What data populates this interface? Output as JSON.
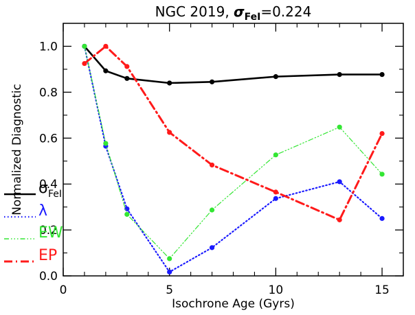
{
  "chart_data": {
    "type": "line",
    "title_prefix": "NGC 2019, ",
    "title_sigma": "σ",
    "title_sub": "FeI",
    "title_suffix": "=0.224",
    "xlabel": "Isochrone Age (Gyrs)",
    "ylabel": "Normalized Diagnostic",
    "xlim": [
      0,
      16
    ],
    "ylim": [
      0,
      1.1
    ],
    "xticks": [
      0,
      5,
      10,
      15
    ],
    "yticks": [
      0.0,
      0.2,
      0.4,
      0.6,
      0.8,
      1.0
    ],
    "ytick_labels": [
      "0.0",
      "0.2",
      "0.4",
      "0.6",
      "0.8",
      "1.0"
    ],
    "x": [
      1,
      2,
      3,
      5,
      7,
      10,
      13,
      15
    ],
    "grid": false,
    "legend_position": "left",
    "series": [
      {
        "name": "σ",
        "name_sub": "FeI",
        "color": "#000000",
        "style": "solid",
        "values": [
          1.0,
          0.893,
          0.86,
          0.84,
          0.845,
          0.868,
          0.877,
          0.877
        ]
      },
      {
        "name": "λ",
        "name_sub": "",
        "color": "#1a1aff",
        "style": "dotted",
        "values": [
          1.0,
          0.565,
          0.292,
          0.017,
          0.123,
          0.337,
          0.41,
          0.25
        ]
      },
      {
        "name": "EW",
        "name_sub": "",
        "color": "#33e633",
        "style": "dashdot3",
        "values": [
          1.0,
          0.577,
          0.268,
          0.075,
          0.287,
          0.527,
          0.648,
          0.443
        ]
      },
      {
        "name": "EP",
        "name_sub": "",
        "color": "#ff1a1a",
        "style": "dashdot",
        "values": [
          0.925,
          1.0,
          0.912,
          0.625,
          0.483,
          0.365,
          0.244,
          0.62
        ]
      }
    ]
  }
}
